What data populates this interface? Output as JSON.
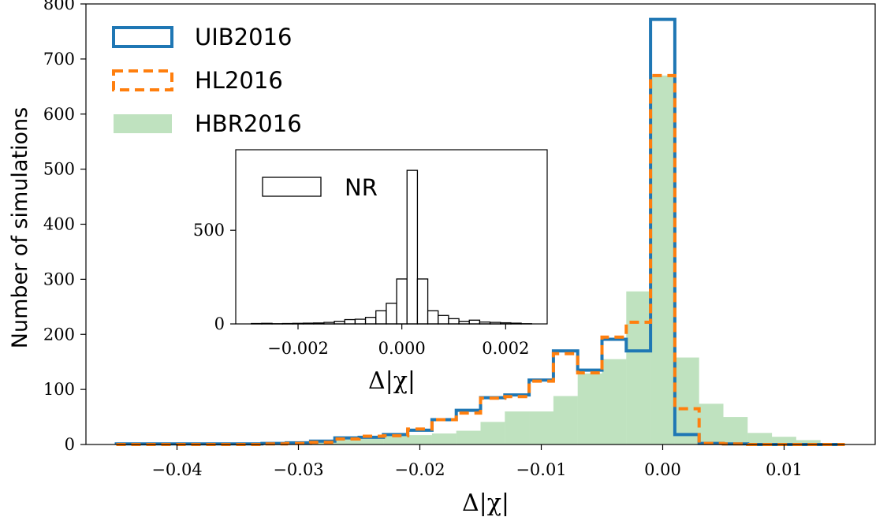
{
  "chart_data": [
    {
      "type": "histogram",
      "xlabel": "Δ|χ|",
      "ylabel": "Number of simulations",
      "xlim": [
        -0.0475,
        0.0175
      ],
      "ylim": [
        0,
        800
      ],
      "xticks": [
        -0.04,
        -0.03,
        -0.02,
        -0.01,
        0.0,
        0.01
      ],
      "xtick_labels": [
        "−0.04",
        "−0.03",
        "−0.02",
        "−0.01",
        "0.00",
        "0.01"
      ],
      "yticks": [
        0,
        100,
        200,
        300,
        400,
        500,
        600,
        700,
        800
      ],
      "ytick_labels": [
        "0",
        "100",
        "200",
        "300",
        "400",
        "500",
        "600",
        "700",
        "800"
      ],
      "legend_position": "top-left",
      "series": [
        {
          "name": "UIB2016",
          "style": "step-outline",
          "color": "#1f77b4",
          "bin_edges": [
            -0.045,
            -0.043,
            -0.041,
            -0.039,
            -0.037,
            -0.035,
            -0.033,
            -0.031,
            -0.029,
            -0.027,
            -0.025,
            -0.023,
            -0.021,
            -0.019,
            -0.017,
            -0.015,
            -0.013,
            -0.011,
            -0.009,
            -0.007,
            -0.005,
            -0.003,
            -0.001,
            0.001,
            0.003,
            0.005,
            0.007,
            0.009,
            0.011,
            0.013,
            0.015
          ],
          "counts": [
            1,
            1,
            1,
            1,
            1,
            1,
            2,
            3,
            6,
            12,
            13,
            18,
            26,
            45,
            62,
            85,
            90,
            117,
            170,
            135,
            191,
            170,
            772,
            18,
            2,
            1,
            0,
            0,
            0,
            0
          ]
        },
        {
          "name": "HL2016",
          "style": "dashed-step-outline",
          "color": "#ff7f0e",
          "bin_edges": [
            -0.045,
            -0.043,
            -0.041,
            -0.039,
            -0.037,
            -0.035,
            -0.033,
            -0.031,
            -0.029,
            -0.027,
            -0.025,
            -0.023,
            -0.021,
            -0.019,
            -0.017,
            -0.015,
            -0.013,
            -0.011,
            -0.009,
            -0.007,
            -0.005,
            -0.003,
            -0.001,
            0.001,
            0.003,
            0.005,
            0.007,
            0.009,
            0.011,
            0.013,
            0.015
          ],
          "counts": [
            0,
            0,
            0,
            0,
            0,
            0,
            1,
            2,
            4,
            10,
            15,
            16,
            28,
            45,
            57,
            84,
            87,
            115,
            165,
            130,
            195,
            222,
            670,
            65,
            2,
            1,
            0,
            0,
            0,
            0
          ]
        },
        {
          "name": "HBR2016",
          "style": "filled",
          "color": "#2ca02c",
          "opacity": 0.3,
          "bin_edges": [
            -0.031,
            -0.029,
            -0.027,
            -0.025,
            -0.023,
            -0.021,
            -0.019,
            -0.017,
            -0.015,
            -0.013,
            -0.011,
            -0.009,
            -0.007,
            -0.005,
            -0.003,
            -0.001,
            0.001,
            0.003,
            0.005,
            0.007,
            0.009,
            0.011,
            0.013
          ],
          "counts": [
            2,
            5,
            10,
            10,
            16,
            17,
            20,
            25,
            41,
            60,
            60,
            88,
            129,
            155,
            278,
            670,
            158,
            74,
            50,
            21,
            14,
            8
          ]
        }
      ]
    },
    {
      "type": "histogram",
      "inset": true,
      "xlabel": "Δ|χ|",
      "ylabel": "",
      "xlim": [
        -0.0032,
        0.0028
      ],
      "ylim": [
        0,
        930
      ],
      "xticks": [
        -0.002,
        0.0,
        0.002
      ],
      "xtick_labels": [
        "−0.002",
        "0.000",
        "0.002"
      ],
      "yticks": [
        0,
        500
      ],
      "ytick_labels": [
        "0",
        "500"
      ],
      "legend_position": "top-left",
      "series": [
        {
          "name": "NR",
          "style": "bar-outline",
          "color": "#000000",
          "bin_edges": [
            -0.0029,
            -0.0027,
            -0.0025,
            -0.0023,
            -0.0021,
            -0.0019,
            -0.0017,
            -0.0015,
            -0.0013,
            -0.0011,
            -0.0009,
            -0.0007,
            -0.0005,
            -0.0003,
            -0.0001,
            0.0001,
            0.0003,
            0.0005,
            0.0007,
            0.0009,
            0.0011,
            0.0013,
            0.0015,
            0.0017,
            0.0019,
            0.0021,
            0.0023,
            0.0025
          ],
          "counts": [
            2,
            3,
            1,
            2,
            3,
            4,
            5,
            8,
            14,
            23,
            25,
            35,
            70,
            110,
            240,
            820,
            240,
            70,
            45,
            28,
            14,
            20,
            10,
            8,
            6,
            4,
            1
          ]
        }
      ]
    }
  ]
}
